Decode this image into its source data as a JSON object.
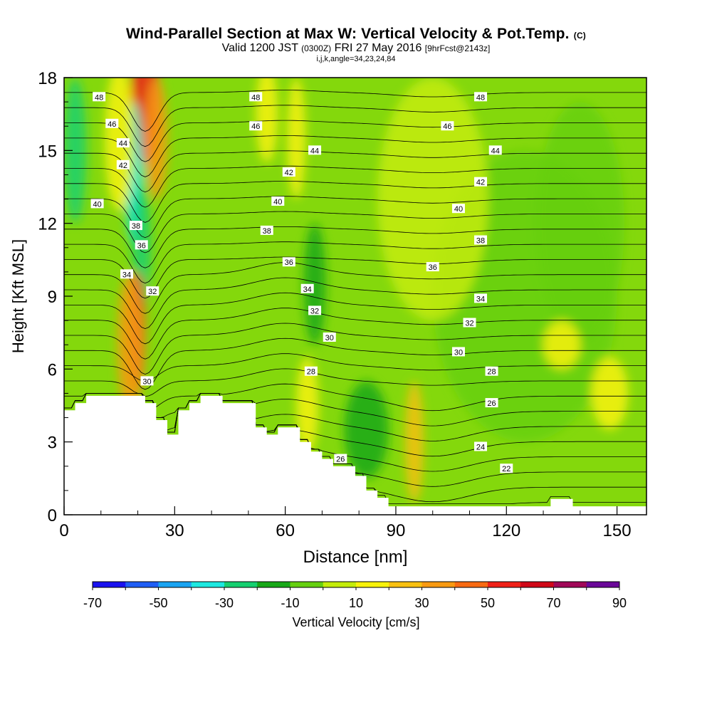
{
  "title": {
    "main": "Wind-Parallel Section at Max W: Vertical Velocity & Pot.Temp.",
    "copyright": "(C)",
    "valid_prefix": "Valid 1200 JST",
    "valid_utc": "(0300Z)",
    "valid_date": "FRI 27 May 2016",
    "forecast": "[9hrFcst@2143z]",
    "indices": "i,j,k,angle=34,23,24,84"
  },
  "colors": {
    "background": "#ffffff",
    "terrain": "#ffffff",
    "contour": "#000000",
    "palette": [
      "#1a12f0",
      "#1f5ef5",
      "#1aa4f2",
      "#1ce8e0",
      "#16d070",
      "#18a818",
      "#66d010",
      "#c4ec0a",
      "#f8f20a",
      "#f8c010",
      "#f89a12",
      "#f86a12",
      "#f02018",
      "#d00818",
      "#a00858",
      "#6a0898"
    ]
  },
  "chart_data": {
    "type": "heatmap",
    "xlabel": "Distance [nm]",
    "ylabel": "Height [Kft MSL]",
    "xlim": [
      0,
      158
    ],
    "ylim": [
      0,
      18
    ],
    "x_ticks": [
      0,
      30,
      60,
      90,
      120,
      150
    ],
    "y_ticks": [
      0,
      3,
      6,
      9,
      12,
      15,
      18
    ],
    "colorbar": {
      "label": "Vertical Velocity [cm/s]",
      "bounds": [
        -70,
        -60,
        -50,
        -40,
        -30,
        -20,
        -10,
        0,
        10,
        20,
        30,
        40,
        50,
        60,
        70,
        80,
        90
      ],
      "tick_labels": [
        -70,
        -50,
        -30,
        -10,
        10,
        30,
        50,
        70,
        90
      ]
    },
    "fill_blobs": [
      {
        "x": 22,
        "y": 17.0,
        "w": 4,
        "h": 2.5,
        "v": 55
      },
      {
        "x": 25,
        "y": 15.5,
        "w": 3,
        "h": 2.5,
        "v": 30
      },
      {
        "x": 19,
        "y": 14.0,
        "w": 2.5,
        "h": 3.0,
        "v": -35
      },
      {
        "x": 21,
        "y": 11.0,
        "w": 2.5,
        "h": 2.5,
        "v": -25
      },
      {
        "x": 20,
        "y": 7.5,
        "w": 2.0,
        "h": 2.5,
        "v": 50
      },
      {
        "x": 18,
        "y": 7.0,
        "w": 3.5,
        "h": 3.0,
        "v": 30
      },
      {
        "x": 3,
        "y": 15.0,
        "w": 3,
        "h": 3,
        "v": -25
      },
      {
        "x": 15,
        "y": 15.5,
        "w": 4,
        "h": 3,
        "v": 10
      },
      {
        "x": 55,
        "y": 16.5,
        "w": 3,
        "h": 2,
        "v": 15
      },
      {
        "x": 63,
        "y": 15.5,
        "w": 2.5,
        "h": 2.5,
        "v": 15
      },
      {
        "x": 68,
        "y": 9.5,
        "w": 3,
        "h": 2.5,
        "v": -15
      },
      {
        "x": 66,
        "y": 4.5,
        "w": 3,
        "h": 2.0,
        "v": 15
      },
      {
        "x": 82,
        "y": 3.5,
        "w": 6,
        "h": 2.0,
        "v": -15
      },
      {
        "x": 95,
        "y": 3.0,
        "w": 2.5,
        "h": 2.5,
        "v": 20
      },
      {
        "x": 125,
        "y": 9.0,
        "w": 25,
        "h": 6,
        "v": -2
      },
      {
        "x": 140,
        "y": 12.0,
        "w": 12,
        "h": 5,
        "v": -4
      },
      {
        "x": 100,
        "y": 13.0,
        "w": 15,
        "h": 5,
        "v": 5
      },
      {
        "x": 135,
        "y": 7.0,
        "w": 5,
        "h": 1.0,
        "v": 10
      },
      {
        "x": 148,
        "y": 5.0,
        "w": 5,
        "h": 1.5,
        "v": 12
      }
    ],
    "theta_lines": [
      22,
      23,
      24,
      25,
      26,
      27,
      28,
      29,
      30,
      31,
      32,
      33,
      34,
      35,
      36,
      37,
      38,
      39,
      40,
      41,
      42,
      43,
      44,
      45,
      46,
      47,
      48,
      49
    ],
    "contour_labels": [
      {
        "text": "48",
        "x": 9.5,
        "y": 17.2
      },
      {
        "text": "46",
        "x": 13,
        "y": 16.1
      },
      {
        "text": "44",
        "x": 16,
        "y": 15.3
      },
      {
        "text": "42",
        "x": 16,
        "y": 14.4
      },
      {
        "text": "40",
        "x": 9,
        "y": 12.8
      },
      {
        "text": "38",
        "x": 19.5,
        "y": 11.9
      },
      {
        "text": "36",
        "x": 21,
        "y": 11.1
      },
      {
        "text": "34",
        "x": 17,
        "y": 9.9
      },
      {
        "text": "32",
        "x": 24,
        "y": 9.2
      },
      {
        "text": "30",
        "x": 22.5,
        "y": 5.5
      },
      {
        "text": "48",
        "x": 52,
        "y": 17.2
      },
      {
        "text": "46",
        "x": 52,
        "y": 16.0
      },
      {
        "text": "44",
        "x": 68,
        "y": 15.0
      },
      {
        "text": "42",
        "x": 61,
        "y": 14.1
      },
      {
        "text": "40",
        "x": 58,
        "y": 12.9
      },
      {
        "text": "38",
        "x": 55,
        "y": 11.7
      },
      {
        "text": "36",
        "x": 61,
        "y": 10.4
      },
      {
        "text": "34",
        "x": 66,
        "y": 9.3
      },
      {
        "text": "32",
        "x": 68,
        "y": 8.4
      },
      {
        "text": "30",
        "x": 72,
        "y": 7.3
      },
      {
        "text": "28",
        "x": 67,
        "y": 5.9
      },
      {
        "text": "26",
        "x": 75,
        "y": 2.3
      },
      {
        "text": "48",
        "x": 113,
        "y": 17.2
      },
      {
        "text": "46",
        "x": 104,
        "y": 16.0
      },
      {
        "text": "44",
        "x": 117,
        "y": 15.0
      },
      {
        "text": "42",
        "x": 113,
        "y": 13.7
      },
      {
        "text": "40",
        "x": 107,
        "y": 12.6
      },
      {
        "text": "38",
        "x": 113,
        "y": 11.3
      },
      {
        "text": "36",
        "x": 100,
        "y": 10.2
      },
      {
        "text": "34",
        "x": 113,
        "y": 8.9
      },
      {
        "text": "32",
        "x": 110,
        "y": 7.9
      },
      {
        "text": "30",
        "x": 107,
        "y": 6.7
      },
      {
        "text": "28",
        "x": 116,
        "y": 5.9
      },
      {
        "text": "26",
        "x": 116,
        "y": 4.6
      },
      {
        "text": "24",
        "x": 113,
        "y": 2.8
      },
      {
        "text": "22",
        "x": 120,
        "y": 1.9
      }
    ],
    "terrain": [
      [
        0,
        4.3
      ],
      [
        3,
        4.3
      ],
      [
        3,
        4.6
      ],
      [
        6,
        4.6
      ],
      [
        6,
        4.9
      ],
      [
        9,
        4.9
      ],
      [
        12,
        4.9
      ],
      [
        15,
        4.9
      ],
      [
        18,
        4.9
      ],
      [
        22,
        4.9
      ],
      [
        22,
        4.6
      ],
      [
        25,
        4.6
      ],
      [
        25,
        3.9
      ],
      [
        28,
        3.9
      ],
      [
        28,
        3.3
      ],
      [
        31,
        3.3
      ],
      [
        31,
        4.3
      ],
      [
        34,
        4.3
      ],
      [
        34,
        4.6
      ],
      [
        37,
        4.6
      ],
      [
        37,
        4.9
      ],
      [
        40,
        4.9
      ],
      [
        43,
        4.9
      ],
      [
        43,
        4.6
      ],
      [
        46,
        4.6
      ],
      [
        49,
        4.6
      ],
      [
        52,
        4.6
      ],
      [
        52,
        3.6
      ],
      [
        55,
        3.6
      ],
      [
        55,
        3.3
      ],
      [
        58,
        3.3
      ],
      [
        58,
        3.6
      ],
      [
        61,
        3.6
      ],
      [
        64,
        3.6
      ],
      [
        64,
        3.0
      ],
      [
        67,
        3.0
      ],
      [
        67,
        2.6
      ],
      [
        70,
        2.6
      ],
      [
        70,
        2.3
      ],
      [
        73,
        2.3
      ],
      [
        73,
        2.0
      ],
      [
        76,
        2.0
      ],
      [
        79,
        2.0
      ],
      [
        79,
        1.6
      ],
      [
        82,
        1.6
      ],
      [
        82,
        1.0
      ],
      [
        85,
        1.0
      ],
      [
        85,
        0.7
      ],
      [
        88,
        0.7
      ],
      [
        88,
        0.35
      ],
      [
        91,
        0.35
      ],
      [
        132,
        0.35
      ],
      [
        132,
        0.65
      ],
      [
        138,
        0.65
      ],
      [
        138,
        0.35
      ],
      [
        158,
        0.35
      ]
    ]
  }
}
